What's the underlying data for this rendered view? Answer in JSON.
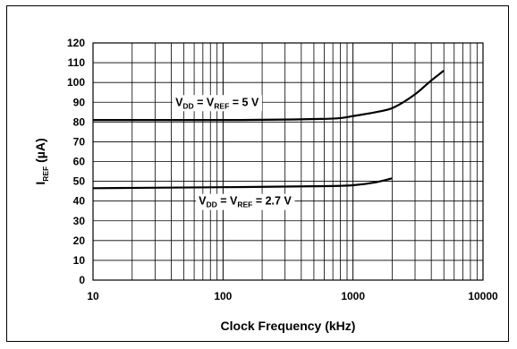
{
  "chart_data": {
    "type": "line",
    "xscale": "log",
    "xlim": [
      10,
      10000
    ],
    "ylim": [
      0,
      120
    ],
    "yticks": [
      0,
      10,
      20,
      30,
      40,
      50,
      60,
      70,
      80,
      90,
      100,
      110,
      120
    ],
    "xticks": [
      10,
      100,
      1000,
      10000
    ],
    "xlabel": "Clock Frequency (kHz)",
    "ylabel": {
      "main": "I",
      "sub": "REF",
      "rest": " (µA)"
    },
    "grid": true,
    "series": [
      {
        "label": {
          "p1": "V",
          "s1": "DD",
          "p2": " = V",
          "s2": "REF",
          "p3": " = 5 V"
        },
        "x": [
          10,
          100,
          500,
          800,
          1000,
          1500,
          2000,
          3000,
          4000,
          5000
        ],
        "y": [
          81,
          81,
          81.5,
          82,
          83,
          85,
          87,
          94,
          101,
          106
        ]
      },
      {
        "label": {
          "p1": "V",
          "s1": "DD",
          "p2": " = V",
          "s2": "REF",
          "p3": " = 2.7 V"
        },
        "x": [
          10,
          100,
          500,
          1000,
          1500,
          2000
        ],
        "y": [
          46.5,
          47,
          47.5,
          48,
          49.5,
          51.5
        ]
      }
    ]
  }
}
